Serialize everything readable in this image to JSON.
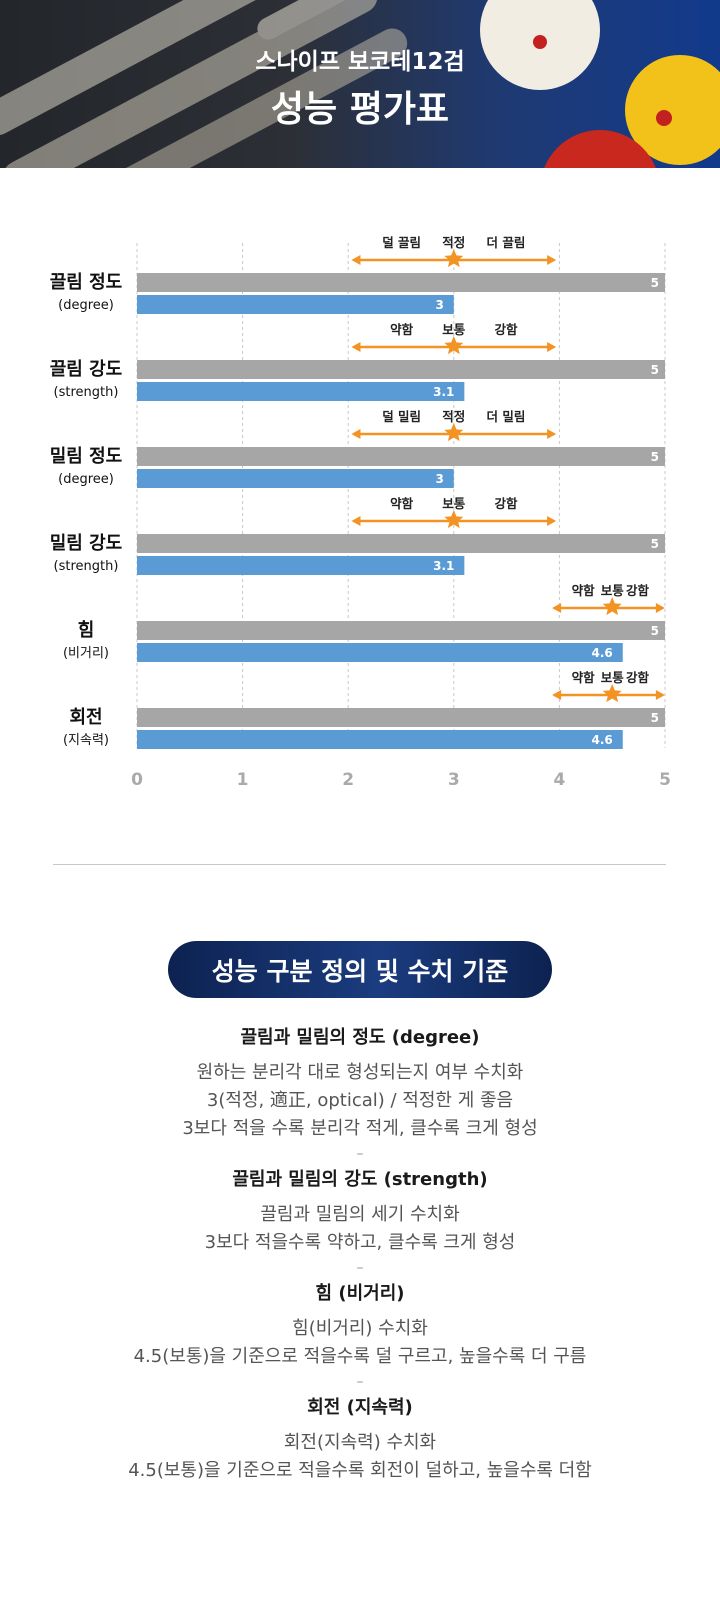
{
  "header": {
    "subtitle": "스나이프 보코테12검",
    "title": "성능 평가표"
  },
  "chart_data": {
    "type": "bar",
    "orientation": "horizontal",
    "xlim": [
      0,
      5
    ],
    "xticks": [
      0,
      1,
      2,
      3,
      4,
      5
    ],
    "grid": true,
    "colors": {
      "max": "#a6a6a6",
      "value": "#5b9bd5",
      "accent": "#f39323"
    },
    "categories": [
      {
        "label": "끌림 정도",
        "sublabel": "(degree)",
        "max": 5,
        "value": 3,
        "value_label": "3",
        "scale": {
          "low": "덜 끌림",
          "mid": "적정",
          "high": "더 끌림",
          "from": 2.05,
          "to": 3.95,
          "marker": 3
        }
      },
      {
        "label": "끌림 강도",
        "sublabel": "(strength)",
        "max": 5,
        "value": 3.1,
        "value_label": "3.1",
        "scale": {
          "low": "약함",
          "mid": "보통",
          "high": "강함",
          "from": 2.05,
          "to": 3.95,
          "marker": 3
        }
      },
      {
        "label": "밀림 정도",
        "sublabel": "(degree)",
        "max": 5,
        "value": 3,
        "value_label": "3",
        "scale": {
          "low": "덜 밀림",
          "mid": "적정",
          "high": "더 밀림",
          "from": 2.05,
          "to": 3.95,
          "marker": 3
        }
      },
      {
        "label": "밀림 강도",
        "sublabel": "(strength)",
        "max": 5,
        "value": 3.1,
        "value_label": "3.1",
        "scale": {
          "low": "약함",
          "mid": "보통",
          "high": "강함",
          "from": 2.05,
          "to": 3.95,
          "marker": 3
        }
      },
      {
        "label": "힘",
        "sublabel": "(비거리)",
        "max": 5,
        "value": 4.6,
        "value_label": "4.6",
        "scale": {
          "low": "약함",
          "mid": "보통",
          "high": "강함",
          "from": 3.95,
          "to": 4.98,
          "marker": 4.5
        }
      },
      {
        "label": "회전",
        "sublabel": "(지속력)",
        "max": 5,
        "value": 4.6,
        "value_label": "4.6",
        "scale": {
          "low": "약함",
          "mid": "보통",
          "high": "강함",
          "from": 3.95,
          "to": 4.98,
          "marker": 4.5
        }
      }
    ]
  },
  "section": {
    "badge": "성능 구분 정의 및 수치 기준"
  },
  "definitions": [
    {
      "title": "끌림과 밀림의 정도 (degree)",
      "lines": [
        "원하는 분리각 대로 형성되는지 여부 수치화",
        "3(적정, 適正, optical) / 적정한 게 좋음",
        "3보다 적을 수록 분리각 적게, 클수록 크게 형성"
      ]
    },
    {
      "title": "끌림과 밀림의 강도 (strength)",
      "lines": [
        "끌림과 밀림의 세기 수치화",
        "3보다 적을수록 약하고, 클수록 크게 형성"
      ]
    },
    {
      "title": "힘 (비거리)",
      "lines": [
        "힘(비거리) 수치화",
        "4.5(보통)을 기준으로 적을수록 덜 구르고, 높을수록 더 구름"
      ]
    },
    {
      "title": "회전 (지속력)",
      "lines": [
        "회전(지속력) 수치화",
        "4.5(보통)을 기준으로 적을수록 회전이 덜하고, 높을수록 더함"
      ]
    }
  ],
  "separator": "–"
}
